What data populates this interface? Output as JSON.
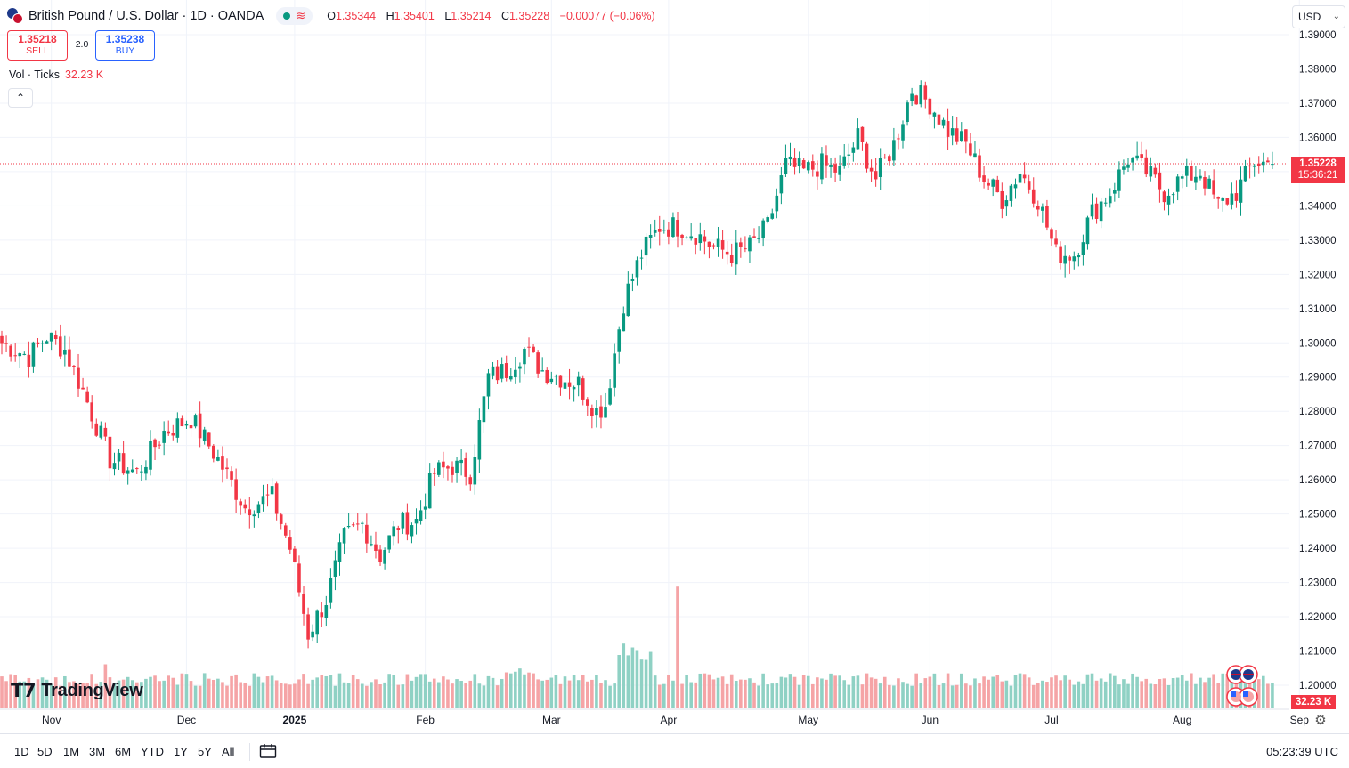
{
  "header": {
    "symbol_title": "British Pound / U.S. Dollar · 1D · OANDA",
    "status_icon": "wave-icon",
    "ohlc": {
      "o_label": "O",
      "o_value": "1.35344",
      "h_label": "H",
      "h_value": "1.35401",
      "l_label": "L",
      "l_value": "1.35214",
      "c_label": "C",
      "c_value": "1.35228",
      "change": "−0.00077 (−0.06%)"
    }
  },
  "trade": {
    "sell_price": "1.35218",
    "sell_label": "SELL",
    "spread": "2.0",
    "buy_price": "1.35238",
    "buy_label": "BUY"
  },
  "volume_legend": {
    "label": "Vol · Ticks",
    "value": "32.23 K"
  },
  "currency": "USD",
  "price_axis": [
    "1.39000",
    "1.38000",
    "1.37000",
    "1.36000",
    "1.35000",
    "1.34000",
    "1.33000",
    "1.32000",
    "1.31000",
    "1.30000",
    "1.29000",
    "1.28000",
    "1.27000",
    "1.26000",
    "1.25000",
    "1.24000",
    "1.23000",
    "1.22000",
    "1.21000",
    "1.20000"
  ],
  "current_price_label": {
    "price": "1.35228",
    "countdown": "15:36:21"
  },
  "volume_axis_label": "32.23 K",
  "time_axis": [
    "Nov",
    "Dec",
    "2025",
    "Feb",
    "Mar",
    "Apr",
    "May",
    "Jun",
    "Jul",
    "Aug",
    "Sep"
  ],
  "branding": "TradingView",
  "range_buttons": [
    "1D",
    "5D",
    "1M",
    "3M",
    "6M",
    "YTD",
    "1Y",
    "5Y",
    "All"
  ],
  "clock": "05:23:39 UTC",
  "colors": {
    "up": "#089981",
    "down": "#f23645",
    "vol_up": "#8fd1c4",
    "vol_down": "#f5a4a6",
    "grid": "#f0f3fa"
  },
  "chart_data": {
    "type": "candlestick",
    "title": "British Pound / U.S. Dollar · 1D · OANDA",
    "ylim": [
      1.195,
      1.392
    ],
    "x_ticks": [
      "Nov",
      "Dec",
      "2025",
      "Feb",
      "Mar",
      "Apr",
      "May",
      "Jun",
      "Jul",
      "Aug",
      "Sep"
    ],
    "anchors_close": [
      [
        0,
        1.3
      ],
      [
        6,
        1.296
      ],
      [
        10,
        1.302
      ],
      [
        14,
        1.298
      ],
      [
        18,
        1.286
      ],
      [
        24,
        1.266
      ],
      [
        30,
        1.262
      ],
      [
        36,
        1.274
      ],
      [
        42,
        1.278
      ],
      [
        48,
        1.266
      ],
      [
        54,
        1.252
      ],
      [
        60,
        1.255
      ],
      [
        64,
        1.24
      ],
      [
        68,
        1.215
      ],
      [
        72,
        1.225
      ],
      [
        76,
        1.243
      ],
      [
        80,
        1.247
      ],
      [
        84,
        1.238
      ],
      [
        88,
        1.247
      ],
      [
        92,
        1.248
      ],
      [
        96,
        1.262
      ],
      [
        100,
        1.264
      ],
      [
        104,
        1.262
      ],
      [
        108,
        1.29
      ],
      [
        112,
        1.292
      ],
      [
        116,
        1.298
      ],
      [
        120,
        1.292
      ],
      [
        124,
        1.29
      ],
      [
        128,
        1.288
      ],
      [
        132,
        1.28
      ],
      [
        134,
        1.282
      ],
      [
        138,
        1.312
      ],
      [
        142,
        1.326
      ],
      [
        146,
        1.334
      ],
      [
        150,
        1.334
      ],
      [
        154,
        1.332
      ],
      [
        158,
        1.328
      ],
      [
        162,
        1.326
      ],
      [
        166,
        1.328
      ],
      [
        170,
        1.334
      ],
      [
        174,
        1.352
      ],
      [
        178,
        1.35
      ],
      [
        182,
        1.352
      ],
      [
        186,
        1.35
      ],
      [
        190,
        1.36
      ],
      [
        194,
        1.348
      ],
      [
        198,
        1.358
      ],
      [
        202,
        1.374
      ],
      [
        206,
        1.37
      ],
      [
        210,
        1.362
      ],
      [
        214,
        1.358
      ],
      [
        218,
        1.348
      ],
      [
        222,
        1.342
      ],
      [
        226,
        1.35
      ],
      [
        230,
        1.342
      ],
      [
        234,
        1.326
      ],
      [
        238,
        1.326
      ],
      [
        242,
        1.338
      ],
      [
        246,
        1.344
      ],
      [
        250,
        1.354
      ],
      [
        254,
        1.35
      ],
      [
        258,
        1.344
      ],
      [
        262,
        1.348
      ],
      [
        266,
        1.35
      ],
      [
        270,
        1.34
      ],
      [
        274,
        1.344
      ],
      [
        278,
        1.353
      ],
      [
        282,
        1.352
      ]
    ],
    "volume_ylim": [
      0,
      80000
    ],
    "volume_last": 32230
  }
}
